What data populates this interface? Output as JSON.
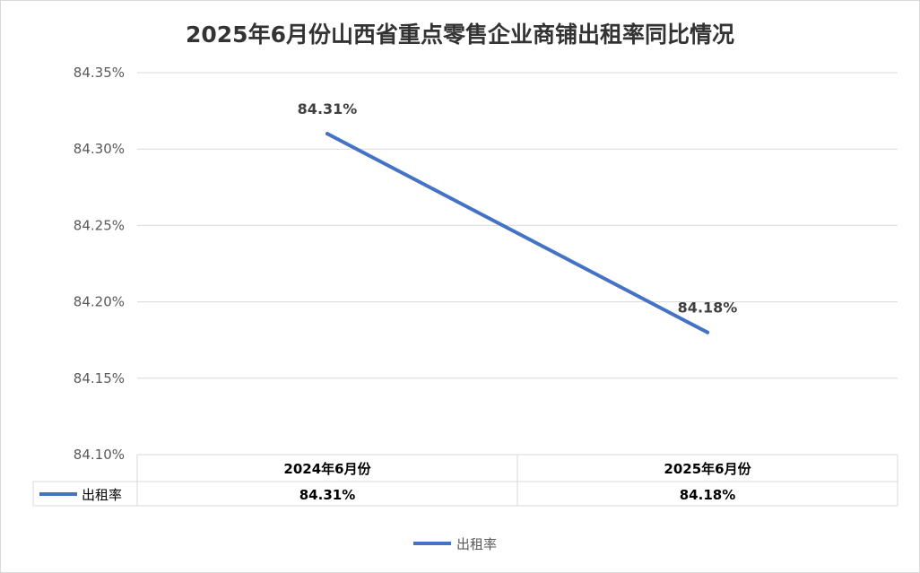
{
  "chart_data": {
    "type": "line",
    "title": "2025年6月份山西省重点零售企业商铺出租率同比情况",
    "categories": [
      "2024年6月份",
      "2025年6月份"
    ],
    "series": [
      {
        "name": "出租率",
        "values": [
          84.31,
          84.18
        ],
        "labels": [
          "84.31%",
          "84.18%"
        ],
        "color": "#4472c4"
      }
    ],
    "ylim": [
      84.1,
      84.35
    ],
    "yticks": [
      "84.35%",
      "84.30%",
      "84.25%",
      "84.20%",
      "84.15%",
      "84.10%"
    ],
    "ytick_values": [
      84.35,
      84.3,
      84.25,
      84.2,
      84.15,
      84.1
    ],
    "grid": true,
    "legend": "bottom",
    "data_table": true
  }
}
